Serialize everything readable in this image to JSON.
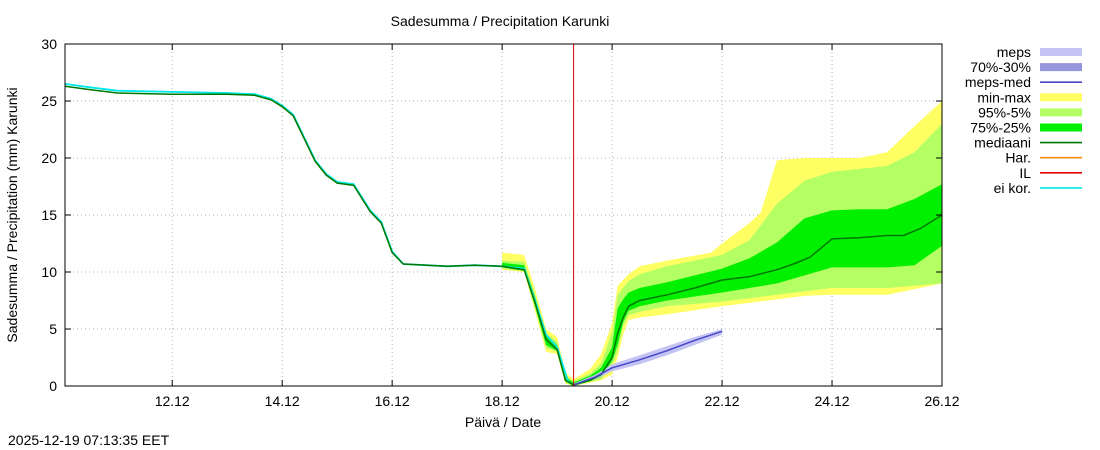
{
  "timestamp": "2025-12-19 07:13:35 EET",
  "chart_data": {
    "type": "area",
    "title": "Sadesumma / Precipitation  Karunki",
    "xlabel": "Päivä / Date",
    "ylabel": "Sadesumma / Precipitation (mm)  Karunki",
    "x_unit": "days since 2025-12-11 00:00",
    "xlim": [
      -0.95,
      15.0
    ],
    "ylim": [
      0,
      30
    ],
    "yticks": [
      0,
      5,
      10,
      15,
      20,
      25,
      30
    ],
    "xticks": [
      {
        "x": 1,
        "label": "12.12"
      },
      {
        "x": 3,
        "label": "14.12"
      },
      {
        "x": 5,
        "label": "16.12"
      },
      {
        "x": 7,
        "label": "18.12"
      },
      {
        "x": 9,
        "label": "20.12"
      },
      {
        "x": 11,
        "label": "22.12"
      },
      {
        "x": 13,
        "label": "24.12"
      },
      {
        "x": 15,
        "label": "26.12"
      }
    ],
    "grid": true,
    "forecast_start_x": 8.3,
    "legend": {
      "placement": "outside-right",
      "items": [
        {
          "key": "meps",
          "label": "meps",
          "color": "#c4c4f4",
          "style": "band"
        },
        {
          "key": "meps7030",
          "label": "70%-30%",
          "color": "#9696dc",
          "style": "band"
        },
        {
          "key": "mepsmed",
          "label": "meps-med",
          "color": "#4646c8",
          "style": "line"
        },
        {
          "key": "minmax",
          "label": "min-max",
          "color": "#ffff64",
          "style": "band"
        },
        {
          "key": "p95",
          "label": "95%-5%",
          "color": "#b4ff64",
          "style": "band"
        },
        {
          "key": "p75",
          "label": "75%-25%",
          "color": "#00f000",
          "style": "band"
        },
        {
          "key": "mediaani",
          "label": "mediaani",
          "color": "#007800",
          "style": "line"
        },
        {
          "key": "har",
          "label": "Har.",
          "color": "#ff8c00",
          "style": "line"
        },
        {
          "key": "il",
          "label": "IL",
          "color": "#e00000",
          "style": "line"
        },
        {
          "key": "eikor",
          "label": "ei kor.",
          "color": "#00e8e8",
          "style": "line"
        }
      ]
    },
    "series": [
      {
        "name": "ei kor.",
        "key": "eikor",
        "kind": "line",
        "points": [
          [
            -0.95,
            26.5
          ],
          [
            -0.5,
            26.2
          ],
          [
            0,
            25.9
          ],
          [
            1,
            25.8
          ],
          [
            2,
            25.7
          ],
          [
            2.5,
            25.6
          ],
          [
            2.8,
            25.2
          ],
          [
            3.0,
            24.6
          ],
          [
            3.2,
            23.8
          ],
          [
            3.4,
            21.8
          ],
          [
            3.6,
            19.8
          ],
          [
            3.8,
            18.6
          ],
          [
            4.0,
            17.9
          ],
          [
            4.3,
            17.7
          ],
          [
            4.6,
            15.4
          ],
          [
            4.8,
            14.4
          ],
          [
            5.0,
            11.8
          ],
          [
            5.2,
            10.7
          ],
          [
            6,
            10.5
          ],
          [
            6.5,
            10.6
          ],
          [
            7.0,
            10.5
          ],
          [
            7.4,
            10.3
          ],
          [
            7.6,
            7.5
          ],
          [
            7.8,
            4.5
          ],
          [
            8.0,
            3.4
          ],
          [
            8.2,
            0.4
          ],
          [
            8.3,
            0.1
          ]
        ]
      },
      {
        "name": "mediaani",
        "key": "mediaani",
        "kind": "line",
        "points": [
          [
            -0.95,
            26.3
          ],
          [
            -0.5,
            26.0
          ],
          [
            0,
            25.7
          ],
          [
            1,
            25.6
          ],
          [
            2,
            25.6
          ],
          [
            2.5,
            25.5
          ],
          [
            2.8,
            25.1
          ],
          [
            3.0,
            24.5
          ],
          [
            3.2,
            23.7
          ],
          [
            3.4,
            21.7
          ],
          [
            3.6,
            19.7
          ],
          [
            3.8,
            18.5
          ],
          [
            4.0,
            17.8
          ],
          [
            4.3,
            17.6
          ],
          [
            4.6,
            15.3
          ],
          [
            4.8,
            14.3
          ],
          [
            5.0,
            11.7
          ],
          [
            5.2,
            10.7
          ],
          [
            6,
            10.5
          ],
          [
            6.5,
            10.6
          ],
          [
            7.0,
            10.5
          ],
          [
            7.4,
            10.2
          ],
          [
            7.6,
            7.3
          ],
          [
            7.8,
            4.1
          ],
          [
            8.0,
            3.2
          ],
          [
            8.15,
            0.5
          ],
          [
            8.3,
            0.1
          ],
          [
            8.6,
            0.5
          ],
          [
            8.8,
            1.0
          ],
          [
            9.0,
            2.5
          ],
          [
            9.1,
            4.6
          ],
          [
            9.2,
            6.0
          ],
          [
            9.3,
            7.0
          ],
          [
            9.5,
            7.5
          ],
          [
            10,
            8.0
          ],
          [
            10.5,
            8.6
          ],
          [
            11,
            9.3
          ],
          [
            11.5,
            9.6
          ],
          [
            12,
            10.2
          ],
          [
            12.3,
            10.7
          ],
          [
            12.6,
            11.3
          ],
          [
            13,
            12.9
          ],
          [
            13.5,
            13.0
          ],
          [
            14,
            13.2
          ],
          [
            14.3,
            13.2
          ],
          [
            14.6,
            13.8
          ],
          [
            15,
            15.0
          ]
        ]
      },
      {
        "name": "meps-med",
        "key": "mepsmed",
        "kind": "line",
        "points": [
          [
            8.3,
            0.1
          ],
          [
            8.7,
            0.8
          ],
          [
            9,
            1.6
          ],
          [
            9.5,
            2.3
          ],
          [
            10,
            3.1
          ],
          [
            10.5,
            4.0
          ],
          [
            11,
            4.8
          ]
        ]
      }
    ],
    "bands": [
      {
        "name": "min-max",
        "key": "minmax",
        "lower": [
          [
            7.0,
            10.2
          ],
          [
            7.4,
            10.0
          ],
          [
            7.6,
            6.5
          ],
          [
            7.8,
            3.0
          ],
          [
            8.0,
            2.8
          ],
          [
            8.15,
            0.2
          ],
          [
            8.3,
            0.0
          ],
          [
            8.6,
            0.3
          ],
          [
            8.8,
            0.5
          ],
          [
            9.0,
            1.0
          ],
          [
            9.1,
            2.5
          ],
          [
            9.2,
            4.5
          ],
          [
            9.3,
            5.8
          ],
          [
            9.5,
            6.0
          ],
          [
            10,
            6.3
          ],
          [
            11,
            7.0
          ],
          [
            12,
            7.6
          ],
          [
            12.5,
            7.9
          ],
          [
            13,
            8.0
          ],
          [
            14,
            8.0
          ],
          [
            14.5,
            8.5
          ],
          [
            15,
            9.0
          ]
        ],
        "upper": [
          [
            7.0,
            11.7
          ],
          [
            7.4,
            11.5
          ],
          [
            7.6,
            8.5
          ],
          [
            7.8,
            5.0
          ],
          [
            8.0,
            4.3
          ],
          [
            8.15,
            1.2
          ],
          [
            8.3,
            0.6
          ],
          [
            8.6,
            1.5
          ],
          [
            8.8,
            2.8
          ],
          [
            9.0,
            5.5
          ],
          [
            9.1,
            8.8
          ],
          [
            9.2,
            9.3
          ],
          [
            9.3,
            9.8
          ],
          [
            9.5,
            10.5
          ],
          [
            10,
            11.0
          ],
          [
            10.8,
            11.7
          ],
          [
            11,
            12.5
          ],
          [
            11.5,
            14.3
          ],
          [
            11.7,
            15.2
          ],
          [
            12,
            19.8
          ],
          [
            12.5,
            20.0
          ],
          [
            13.5,
            20.0
          ],
          [
            14,
            20.5
          ],
          [
            14.5,
            22.8
          ],
          [
            15,
            25.0
          ]
        ]
      },
      {
        "name": "95%-5%",
        "key": "p95",
        "lower": [
          [
            7.0,
            10.3
          ],
          [
            7.4,
            10.1
          ],
          [
            7.6,
            6.8
          ],
          [
            7.8,
            3.3
          ],
          [
            8.0,
            3.0
          ],
          [
            8.15,
            0.3
          ],
          [
            8.3,
            0.0
          ],
          [
            8.6,
            0.4
          ],
          [
            8.8,
            0.6
          ],
          [
            9.0,
            1.8
          ],
          [
            9.1,
            3.0
          ],
          [
            9.2,
            5.2
          ],
          [
            9.3,
            6.2
          ],
          [
            9.5,
            6.5
          ],
          [
            10,
            7.0
          ],
          [
            11,
            7.4
          ],
          [
            12,
            8.0
          ],
          [
            13,
            8.6
          ],
          [
            14,
            8.6
          ],
          [
            14.5,
            8.8
          ],
          [
            15,
            9.0
          ]
        ],
        "upper": [
          [
            7.0,
            11.0
          ],
          [
            7.4,
            10.9
          ],
          [
            7.6,
            8.0
          ],
          [
            7.8,
            4.6
          ],
          [
            8.0,
            3.9
          ],
          [
            8.15,
            0.9
          ],
          [
            8.3,
            0.4
          ],
          [
            8.6,
            1.1
          ],
          [
            8.8,
            2.0
          ],
          [
            9.0,
            4.7
          ],
          [
            9.1,
            8.0
          ],
          [
            9.2,
            8.6
          ],
          [
            9.3,
            9.2
          ],
          [
            9.5,
            9.8
          ],
          [
            10,
            10.5
          ],
          [
            11,
            11.5
          ],
          [
            11.5,
            12.8
          ],
          [
            12,
            16.0
          ],
          [
            12.5,
            18.0
          ],
          [
            13,
            18.8
          ],
          [
            14,
            19.3
          ],
          [
            14.5,
            20.5
          ],
          [
            15,
            23.0
          ]
        ]
      },
      {
        "name": "75%-25%",
        "key": "p75",
        "lower": [
          [
            7.0,
            10.4
          ],
          [
            7.4,
            10.1
          ],
          [
            7.6,
            7.0
          ],
          [
            7.8,
            3.6
          ],
          [
            8.0,
            3.1
          ],
          [
            8.15,
            0.4
          ],
          [
            8.3,
            0.0
          ],
          [
            8.6,
            0.4
          ],
          [
            8.8,
            0.8
          ],
          [
            9.0,
            2.2
          ],
          [
            9.1,
            3.6
          ],
          [
            9.2,
            5.6
          ],
          [
            9.3,
            6.6
          ],
          [
            9.5,
            7.0
          ],
          [
            10,
            7.5
          ],
          [
            11,
            8.2
          ],
          [
            12,
            9.0
          ],
          [
            13,
            10.4
          ],
          [
            14,
            10.4
          ],
          [
            14.5,
            10.6
          ],
          [
            15,
            12.3
          ]
        ],
        "upper": [
          [
            7.0,
            10.8
          ],
          [
            7.4,
            10.6
          ],
          [
            7.6,
            7.8
          ],
          [
            7.8,
            4.4
          ],
          [
            8.0,
            3.6
          ],
          [
            8.15,
            0.8
          ],
          [
            8.3,
            0.3
          ],
          [
            8.6,
            0.9
          ],
          [
            8.8,
            1.6
          ],
          [
            9.0,
            3.4
          ],
          [
            9.1,
            6.8
          ],
          [
            9.2,
            7.6
          ],
          [
            9.3,
            8.2
          ],
          [
            9.5,
            8.6
          ],
          [
            10,
            9.1
          ],
          [
            11,
            10.3
          ],
          [
            11.5,
            11.2
          ],
          [
            12,
            12.6
          ],
          [
            12.5,
            14.7
          ],
          [
            13,
            15.4
          ],
          [
            13.5,
            15.5
          ],
          [
            14,
            15.5
          ],
          [
            14.5,
            16.4
          ],
          [
            15,
            17.7
          ]
        ]
      },
      {
        "name": "meps",
        "key": "meps",
        "lower": [
          [
            8.3,
            0.0
          ],
          [
            8.7,
            0.6
          ],
          [
            9,
            1.3
          ],
          [
            9.5,
            1.9
          ],
          [
            10,
            2.7
          ],
          [
            10.5,
            3.6
          ],
          [
            11,
            4.5
          ]
        ],
        "upper": [
          [
            8.3,
            0.2
          ],
          [
            8.7,
            1.0
          ],
          [
            9,
            1.9
          ],
          [
            9.5,
            2.7
          ],
          [
            10,
            3.5
          ],
          [
            10.5,
            4.3
          ],
          [
            11,
            5.0
          ]
        ]
      }
    ]
  }
}
